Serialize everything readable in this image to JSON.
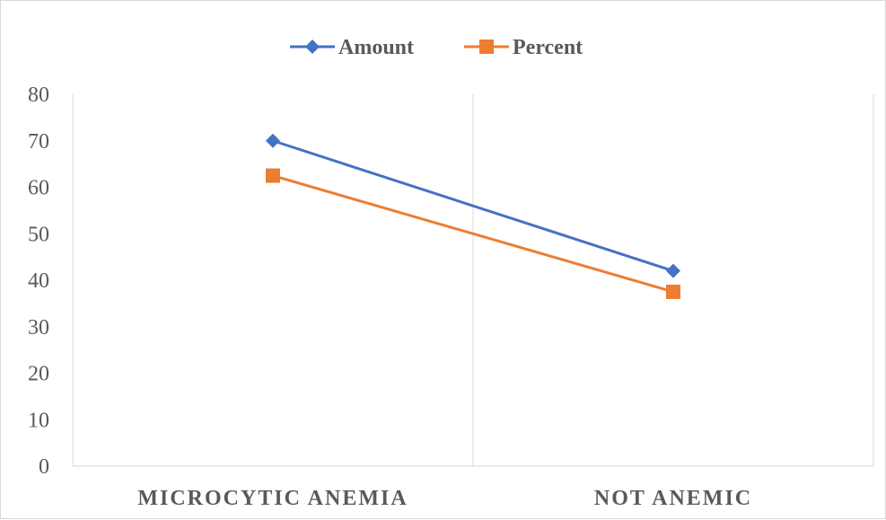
{
  "chart_data": {
    "type": "line",
    "title": "",
    "xlabel": "",
    "ylabel": "",
    "categories": [
      "MICROCYTIC ANEMIA",
      "NOT ANEMIC"
    ],
    "series": [
      {
        "name": "Amount",
        "values": [
          70,
          42
        ],
        "color": "#4472c4",
        "marker": "diamond"
      },
      {
        "name": "Percent",
        "values": [
          62.5,
          37.5
        ],
        "color": "#ed7d31",
        "marker": "square"
      }
    ],
    "ylim": [
      0,
      80
    ],
    "yticks": [
      "0",
      "10",
      "20",
      "30",
      "40",
      "50",
      "60",
      "70",
      "80"
    ],
    "grid": false,
    "legend": "top"
  }
}
